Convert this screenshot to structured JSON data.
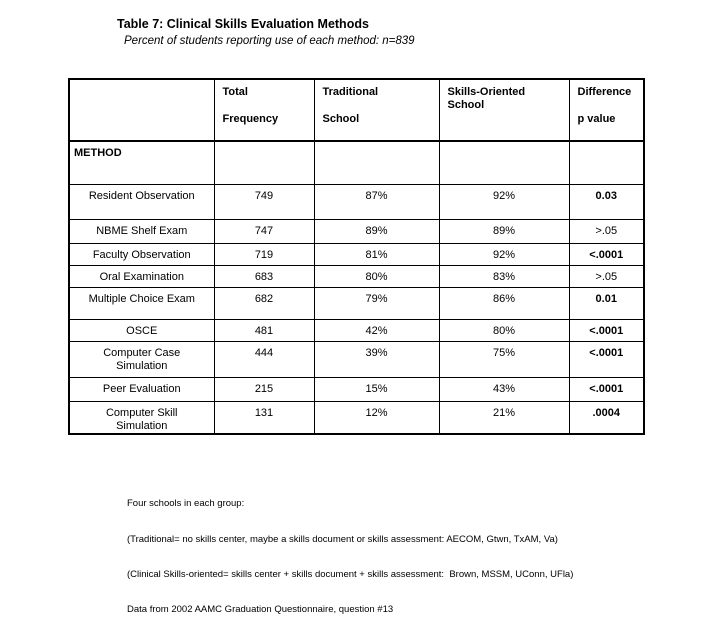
{
  "title": "Table 7: Clinical Skills Evaluation Methods",
  "subtitle": "Percent of students reporting use of each method: n=839",
  "table": {
    "method_label": "METHOD",
    "columns": [
      {
        "lines": [
          "",
          ""
        ]
      },
      {
        "lines": [
          "Total",
          "Frequency"
        ]
      },
      {
        "lines": [
          "Traditional",
          "School"
        ]
      },
      {
        "lines": [
          "Skills-Oriented",
          "School"
        ]
      },
      {
        "lines": [
          "Difference",
          "p value"
        ]
      }
    ],
    "rows": [
      {
        "method": "Resident Observation",
        "total": "749",
        "traditional": "87%",
        "skills": "92%",
        "p": "0.03",
        "p_bold": true
      },
      {
        "method": "NBME Shelf Exam",
        "total": "747",
        "traditional": "89%",
        "skills": "89%",
        "p": ">.05",
        "p_bold": false
      },
      {
        "method": "Faculty Observation",
        "total": "719",
        "traditional": "81%",
        "skills": "92%",
        "p": "<.0001",
        "p_bold": true
      },
      {
        "method": "Oral Examination",
        "total": "683",
        "traditional": "80%",
        "skills": "83%",
        "p": ">.05",
        "p_bold": false
      },
      {
        "method": "Multiple Choice Exam",
        "total": "682",
        "traditional": "79%",
        "skills": "86%",
        "p": "0.01",
        "p_bold": true
      },
      {
        "method": "OSCE",
        "total": "481",
        "traditional": "42%",
        "skills": "80%",
        "p": "<.0001",
        "p_bold": true
      },
      {
        "method": "Computer Case Simulation",
        "total": "444",
        "traditional": "39%",
        "skills": "75%",
        "p": "<.0001",
        "p_bold": true
      },
      {
        "method": "Peer Evaluation",
        "total": "215",
        "traditional": "15%",
        "skills": "43%",
        "p": "<.0001",
        "p_bold": true
      },
      {
        "method": "Computer Skill Simulation",
        "total": "131",
        "traditional": "12%",
        "skills": "21%",
        "p": ".0004",
        "p_bold": true
      }
    ]
  },
  "footnotes": [
    "Four schools in each group:",
    "(Traditional= no skills center, maybe a skills document or skills assessment: AECOM, Gtwn, TxAM, Va)",
    "(Clinical Skills-oriented= skills center + skills document + skills assessment:  Brown, MSSM, UConn, UFla)",
    "Data from 2002 AAMC Graduation Questionnaire, question #13"
  ],
  "colors": {
    "text": "#000000",
    "background": "#ffffff",
    "border": "#000000"
  }
}
